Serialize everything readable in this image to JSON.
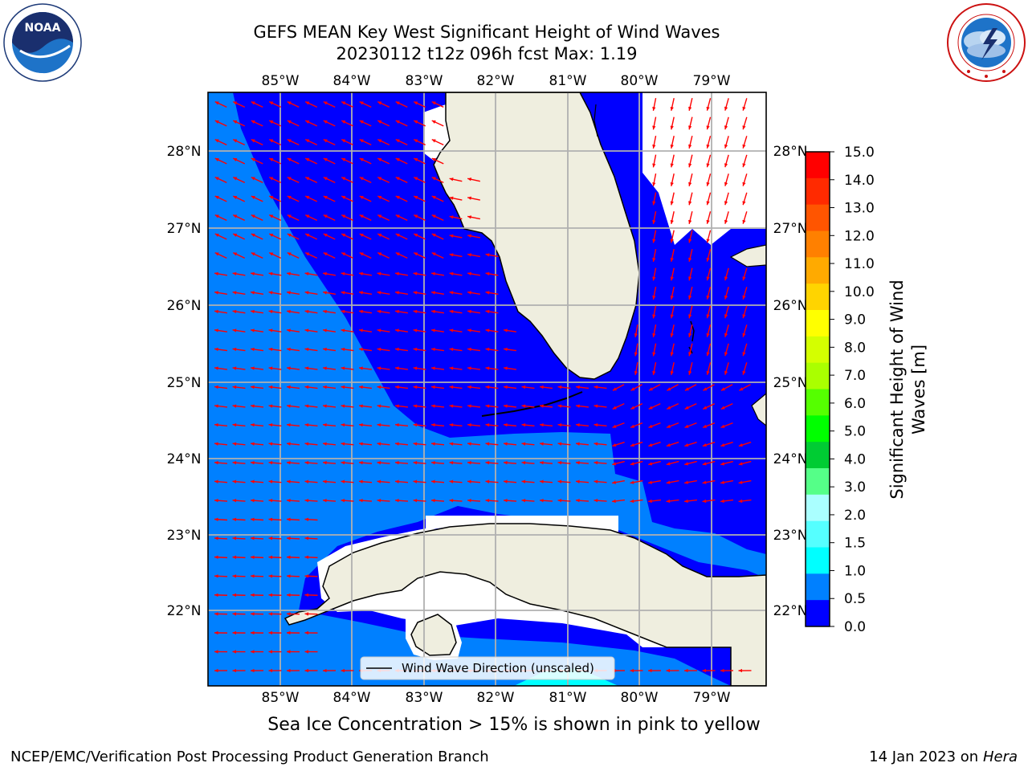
{
  "title_line1": "GEFS MEAN Key West Significant Height of Wind Waves",
  "title_line2": "20230112 t12z 096h fcst   Max: 1.19",
  "lon_ticks": [
    "85°W",
    "84°W",
    "83°W",
    "82°W",
    "81°W",
    "80°W",
    "79°W"
  ],
  "lat_ticks": [
    "28°N",
    "27°N",
    "26°N",
    "25°N",
    "24°N",
    "23°N",
    "22°N"
  ],
  "legend_label": "Wind Wave Direction (unscaled)",
  "colorbar": {
    "label": "Significant Height of Wind Waves [m]",
    "ticks": [
      "15.0",
      "14.0",
      "13.0",
      "12.0",
      "11.0",
      "10.0",
      "9.0",
      "8.0",
      "7.0",
      "6.0",
      "5.0",
      "4.0",
      "3.0",
      "2.0",
      "1.5",
      "1.0",
      "0.5",
      "0.0"
    ],
    "colors": [
      "#ff0000",
      "#ff2a00",
      "#ff5500",
      "#ff8000",
      "#ffaa00",
      "#ffd400",
      "#ffff00",
      "#d4ff00",
      "#aaff00",
      "#55ff00",
      "#00ff00",
      "#00cc33",
      "#55ff88",
      "#aaffff",
      "#55ffff",
      "#00ffff",
      "#0080ff",
      "#0000ff"
    ]
  },
  "map_colors": {
    "band_0_0.5": "#0000ff",
    "band_0.5_1.0": "#0080ff",
    "band_1.0_1.5": "#00ffff",
    "land": "#efeedf",
    "arrow": "#ff0000",
    "grid": "#b0b0b0"
  },
  "ice_caption": "Sea Ice Concentration > 15% is shown in pink to yellow",
  "footer_left": "NCEP/EMC/Verification Post Processing Product Generation Branch",
  "footer_right_date": "14 Jan 2023 on ",
  "footer_right_host": "Hera",
  "logos": {
    "noaa": "NOAA",
    "noaa_ring": "NATIONAL OCEANIC AND ATMOSPHERIC ADMINISTRATION · U.S. DEPARTMENT OF COMMERCE",
    "nws": "NATIONAL WEATHER SERVICE"
  }
}
